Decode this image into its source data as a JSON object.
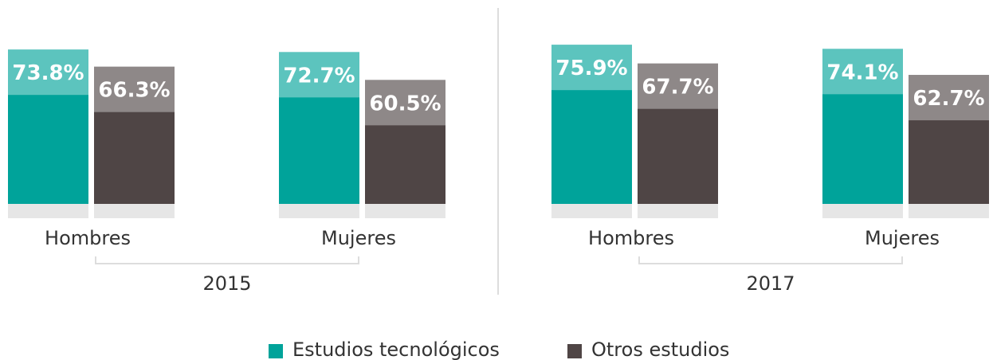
{
  "chart_data": {
    "type": "bar",
    "categories": [
      "Hombres",
      "Mujeres"
    ],
    "series": [
      {
        "name": "Estudios tecnológicos",
        "color": "#00a39a"
      },
      {
        "name": "Otros estudios",
        "color": "#4f4545"
      }
    ],
    "panels": [
      {
        "label": "2015",
        "values": [
          [
            73.8,
            72.7
          ],
          [
            66.3,
            60.5
          ]
        ],
        "value_labels": [
          [
            "73.8%",
            "72.7%"
          ],
          [
            "66.3%",
            "60.5%"
          ]
        ]
      },
      {
        "label": "2017",
        "values": [
          [
            75.9,
            74.1
          ],
          [
            67.7,
            62.7
          ]
        ],
        "value_labels": [
          [
            "75.9%",
            "74.1%"
          ],
          [
            "67.7%",
            "62.7%"
          ]
        ]
      }
    ]
  }
}
